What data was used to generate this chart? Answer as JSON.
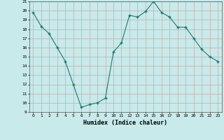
{
  "x": [
    0,
    1,
    2,
    3,
    4,
    5,
    6,
    7,
    8,
    9,
    10,
    11,
    12,
    13,
    14,
    15,
    16,
    17,
    18,
    19,
    20,
    21,
    22,
    23
  ],
  "y": [
    19.8,
    18.3,
    17.5,
    16.0,
    14.5,
    12.0,
    9.5,
    9.8,
    10.0,
    10.5,
    15.5,
    16.5,
    19.5,
    19.3,
    19.9,
    21.0,
    19.8,
    19.3,
    18.2,
    18.2,
    17.0,
    15.8,
    15.0,
    14.5
  ],
  "xlabel": "Humidex (Indice chaleur)",
  "ylim": [
    9,
    21
  ],
  "xlim": [
    -0.5,
    23.5
  ],
  "yticks": [
    9,
    10,
    11,
    12,
    13,
    14,
    15,
    16,
    17,
    18,
    19,
    20,
    21
  ],
  "xticks": [
    0,
    1,
    2,
    3,
    4,
    5,
    6,
    7,
    8,
    9,
    10,
    11,
    12,
    13,
    14,
    15,
    16,
    17,
    18,
    19,
    20,
    21,
    22,
    23
  ],
  "line_color": "#1a7a6e",
  "marker": "+",
  "bg_color": "#c8eaea",
  "grid_color": "#c8a8a8"
}
